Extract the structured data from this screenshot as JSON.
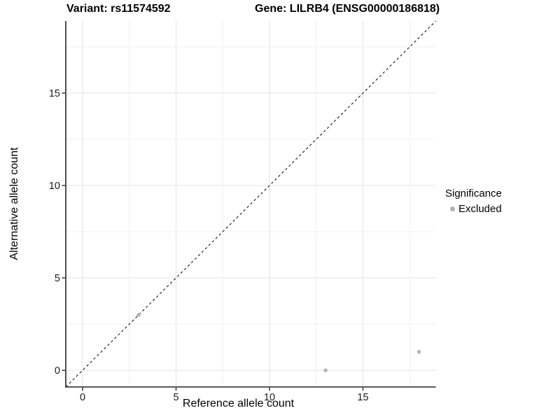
{
  "titles": {
    "variant": "Variant: rs11574592",
    "gene": "Gene: LILRB4 (ENSG00000186818)"
  },
  "chart_data": {
    "type": "scatter",
    "xlabel": "Reference allele count",
    "ylabel": "Alternative allele count",
    "xlim": [
      -0.9,
      18.9
    ],
    "ylim": [
      -0.9,
      18.9
    ],
    "x_ticks": [
      0,
      5,
      10,
      15
    ],
    "y_ticks": [
      0,
      5,
      10,
      15
    ],
    "x_minor_ticks": [
      2.5,
      7.5,
      12.5,
      17.5
    ],
    "y_minor_ticks": [
      2.5,
      7.5,
      12.5,
      17.5
    ],
    "grid": "on",
    "points": [
      {
        "x": 3,
        "y": 3,
        "series": "Excluded"
      },
      {
        "x": 13,
        "y": 0,
        "series": "Excluded"
      },
      {
        "x": 18,
        "y": 1,
        "series": "Excluded"
      }
    ],
    "reference_line": {
      "type": "identity y=x",
      "style": "dashed",
      "color": "#000000"
    },
    "legend": {
      "position": "right",
      "title": "Significance",
      "items": [
        {
          "label": "Excluded",
          "color": "#b0b0b0"
        }
      ]
    },
    "colors": {
      "point": "#b5b5b5",
      "grid_major": "#e3e3e3",
      "grid_minor": "#efefef",
      "axis_line": "#3c3c3c",
      "tick": "#333333",
      "tick_label": "#1a1a1a"
    }
  }
}
